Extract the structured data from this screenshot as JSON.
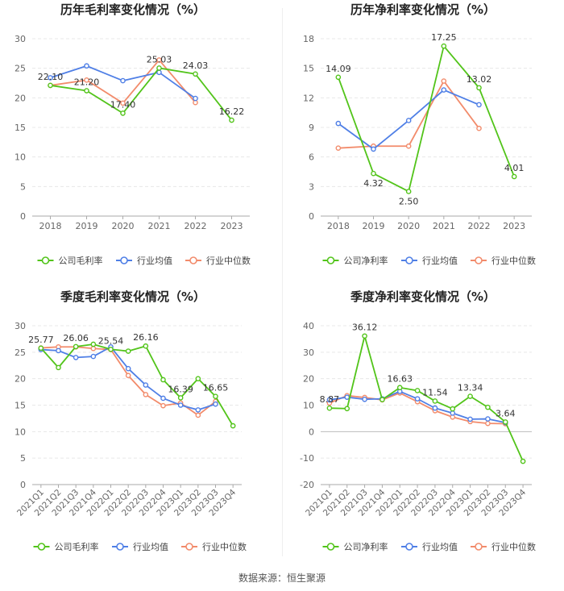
{
  "source_text": "数据来源：恒生聚源",
  "colors": {
    "company": "#52c41a",
    "avg": "#4f7fe6",
    "median": "#f28b6b",
    "grid": "#e8e8e8",
    "axis_text": "#666666",
    "label_text": "#333333"
  },
  "legend": {
    "avg": "行业均值",
    "median": "行业中位数"
  },
  "chart_data": [
    {
      "type": "line",
      "title": "历年毛利率变化情况（%）",
      "categories": [
        "2018",
        "2019",
        "2020",
        "2021",
        "2022",
        "2023"
      ],
      "ylim": [
        0,
        30
      ],
      "yticks": [
        0,
        5,
        10,
        15,
        20,
        25,
        30
      ],
      "series": [
        {
          "name": "公司毛利率",
          "role": "company",
          "values": [
            22.1,
            21.2,
            17.4,
            25.03,
            24.03,
            16.22
          ]
        },
        {
          "name": "行业均值",
          "role": "avg",
          "values": [
            23.4,
            25.4,
            22.9,
            24.3,
            19.9,
            null
          ]
        },
        {
          "name": "行业中位数",
          "role": "median",
          "values": [
            22.1,
            23.0,
            19.1,
            26.4,
            19.2,
            null
          ]
        }
      ],
      "data_labels": [
        "22.10",
        "21.20",
        "17.40",
        "25.03",
        "24.03",
        "16.22"
      ],
      "label_pos": [
        "above",
        "above",
        "above",
        "above",
        "above",
        "above"
      ]
    },
    {
      "type": "line",
      "title": "历年净利率变化情况（%）",
      "categories": [
        "2018",
        "2019",
        "2020",
        "2021",
        "2022",
        "2023"
      ],
      "ylim": [
        0,
        18
      ],
      "yticks": [
        0,
        3,
        6,
        9,
        12,
        15,
        18
      ],
      "series": [
        {
          "name": "公司净利率",
          "role": "company",
          "values": [
            14.09,
            4.32,
            2.5,
            17.25,
            13.02,
            4.01
          ]
        },
        {
          "name": "行业均值",
          "role": "avg",
          "values": [
            9.4,
            6.8,
            9.7,
            12.8,
            11.3,
            null
          ]
        },
        {
          "name": "行业中位数",
          "role": "median",
          "values": [
            6.9,
            7.1,
            7.1,
            13.7,
            8.9,
            null
          ]
        }
      ],
      "data_labels": [
        "14.09",
        "4.32",
        "2.50",
        "17.25",
        "13.02",
        "4.01"
      ],
      "label_pos": [
        "above",
        "below",
        "below",
        "above",
        "above",
        "above"
      ]
    },
    {
      "type": "line",
      "title": "季度毛利率变化情况（%）",
      "categories": [
        "2021Q1",
        "2021Q2",
        "2021Q3",
        "2021Q4",
        "2022Q1",
        "2022Q2",
        "2022Q3",
        "2022Q4",
        "2023Q1",
        "2023Q2",
        "2023Q3",
        "2023Q4"
      ],
      "ylim": [
        0,
        30
      ],
      "yticks": [
        0,
        5,
        10,
        15,
        20,
        25,
        30
      ],
      "series": [
        {
          "name": "公司毛利率",
          "role": "company",
          "values": [
            25.77,
            22.1,
            26.06,
            26.5,
            25.54,
            25.2,
            26.16,
            19.8,
            16.39,
            20.0,
            16.65,
            11.1
          ]
        },
        {
          "name": "行业均值",
          "role": "avg",
          "values": [
            25.5,
            25.3,
            24.0,
            24.2,
            26.0,
            21.9,
            18.8,
            16.3,
            15.0,
            14.1,
            15.2,
            null
          ]
        },
        {
          "name": "行业中位数",
          "role": "median",
          "values": [
            25.8,
            26.0,
            26.0,
            25.7,
            25.5,
            20.6,
            17.0,
            14.9,
            15.4,
            13.1,
            15.7,
            null
          ]
        }
      ],
      "data_labels": [
        "25.77",
        "",
        "26.06",
        "",
        "25.54",
        "",
        "26.16",
        "",
        "16.39",
        "",
        "16.65",
        ""
      ],
      "label_pos": [
        "above",
        "above",
        "above",
        "above",
        "above",
        "above",
        "above",
        "above",
        "above",
        "above",
        "above",
        "above"
      ]
    },
    {
      "type": "line",
      "title": "季度净利率变化情况（%）",
      "categories": [
        "2021Q1",
        "2021Q2",
        "2021Q3",
        "2021Q4",
        "2022Q1",
        "2022Q2",
        "2022Q3",
        "2022Q4",
        "2023Q1",
        "2023Q2",
        "2023Q3",
        "2023Q4"
      ],
      "ylim": [
        -20,
        40
      ],
      "yticks": [
        -20,
        -10,
        0,
        10,
        20,
        30,
        40
      ],
      "series": [
        {
          "name": "公司净利率",
          "role": "company",
          "values": [
            8.87,
            8.7,
            36.12,
            12.1,
            16.63,
            15.5,
            11.54,
            8.6,
            13.34,
            9.2,
            3.64,
            -11.2
          ]
        },
        {
          "name": "行业均值",
          "role": "avg",
          "values": [
            12.0,
            13.0,
            12.2,
            12.4,
            15.2,
            12.4,
            8.9,
            7.0,
            4.7,
            4.8,
            3.4,
            null
          ]
        },
        {
          "name": "行业中位数",
          "role": "median",
          "values": [
            10.8,
            13.6,
            12.9,
            12.0,
            14.6,
            11.3,
            7.9,
            5.5,
            3.8,
            3.1,
            3.0,
            null
          ]
        }
      ],
      "data_labels": [
        "8.87",
        "",
        "36.12",
        "",
        "16.63",
        "",
        "11.54",
        "",
        "13.34",
        "",
        "3.64",
        ""
      ],
      "label_pos": [
        "above",
        "above",
        "above",
        "above",
        "above",
        "above",
        "above",
        "above",
        "above",
        "above",
        "above",
        "above"
      ]
    }
  ]
}
